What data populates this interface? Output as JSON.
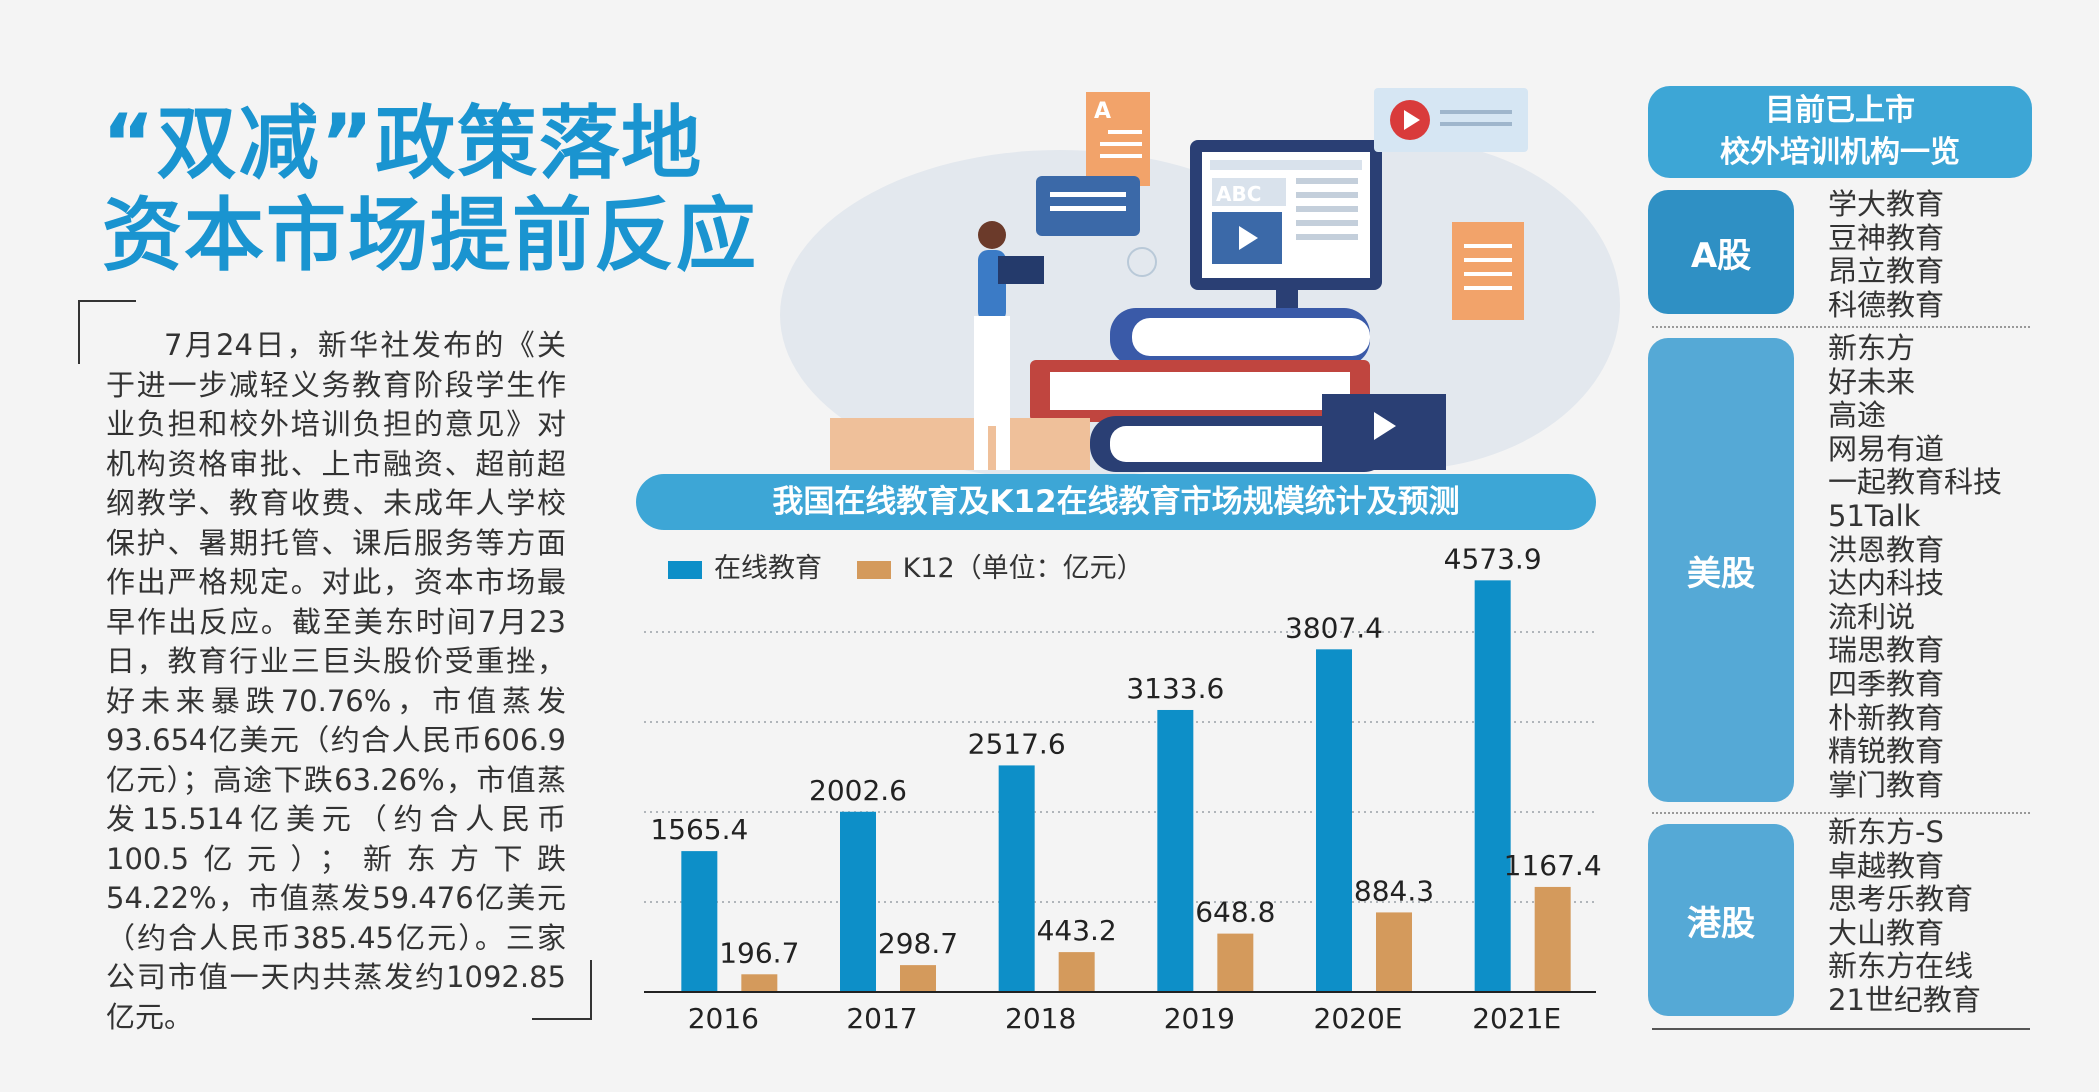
{
  "headline": {
    "line1": "“双减”政策落地",
    "line2": "资本市场提前反应"
  },
  "article": {
    "text": "7月24日，新华社发布的《关于进一步减轻义务教育阶段学生作业负担和校外培训负担的意见》对机构资格审批、上市融资、超前超纲教学、教育收费、未成年人学校保护、暑期托管、课后服务等方面作出严格规定。对此，资本市场最早作出反应。截至美东时间7月23日，教育行业三巨头股价受重挫，好未来暴跌70.76%，市值蒸发93.654亿美元（约合人民币606.9亿元）；高途下跌63.26%，市值蒸发15.514亿美元（约合人民币100.5亿元）；新东方下跌54.22%，市值蒸发59.476亿美元（约合人民币385.45亿元）。三家公司市值一天内共蒸发约1092.85亿元。"
  },
  "illustration": {
    "abc_text": "ABC",
    "letter_a": "A"
  },
  "chart_data": {
    "type": "bar",
    "title": "我国在线教育及K12在线教育市场规模统计及预测",
    "unit_note": "（单位：亿元）",
    "categories": [
      "2016",
      "2017",
      "2018",
      "2019",
      "2020E",
      "2021E"
    ],
    "series": [
      {
        "name": "在线教育",
        "color": "#0d8fc8",
        "values": [
          1565.4,
          2002.6,
          2517.6,
          3133.6,
          3807.4,
          4573.9
        ]
      },
      {
        "name": "K12",
        "color": "#d49a5c",
        "values": [
          196.7,
          298.7,
          443.2,
          648.8,
          884.3,
          1167.4
        ]
      }
    ],
    "value_labels": [
      [
        "1565.4",
        "2002.6",
        "2517.6",
        "3133.6",
        "3807.4",
        "4573.9"
      ],
      [
        "196.7",
        "298.7",
        "443.2",
        "648.8",
        "884.3",
        "1167.4"
      ]
    ],
    "ylim": [
      0,
      4800
    ],
    "grid": true,
    "legend_position": "top-left"
  },
  "sidebar": {
    "title_line1": "目前已上市",
    "title_line2": "校外培训机构一览",
    "markets": [
      {
        "name": "A股",
        "companies": [
          "学大教育",
          "豆神教育",
          "昂立教育",
          "科德教育"
        ]
      },
      {
        "name": "美股",
        "companies": [
          "新东方",
          "好未来",
          "高途",
          "网易有道",
          "一起教育科技",
          "51Talk",
          "洪恩教育",
          "达内科技",
          "流利说",
          "瑞思教育",
          "四季教育",
          "朴新教育",
          "精锐教育",
          "掌门教育"
        ]
      },
      {
        "name": "港股",
        "companies": [
          "新东方-S",
          "卓越教育",
          "思考乐教育",
          "大山教育",
          "新东方在线",
          "21世纪教育"
        ]
      }
    ]
  }
}
